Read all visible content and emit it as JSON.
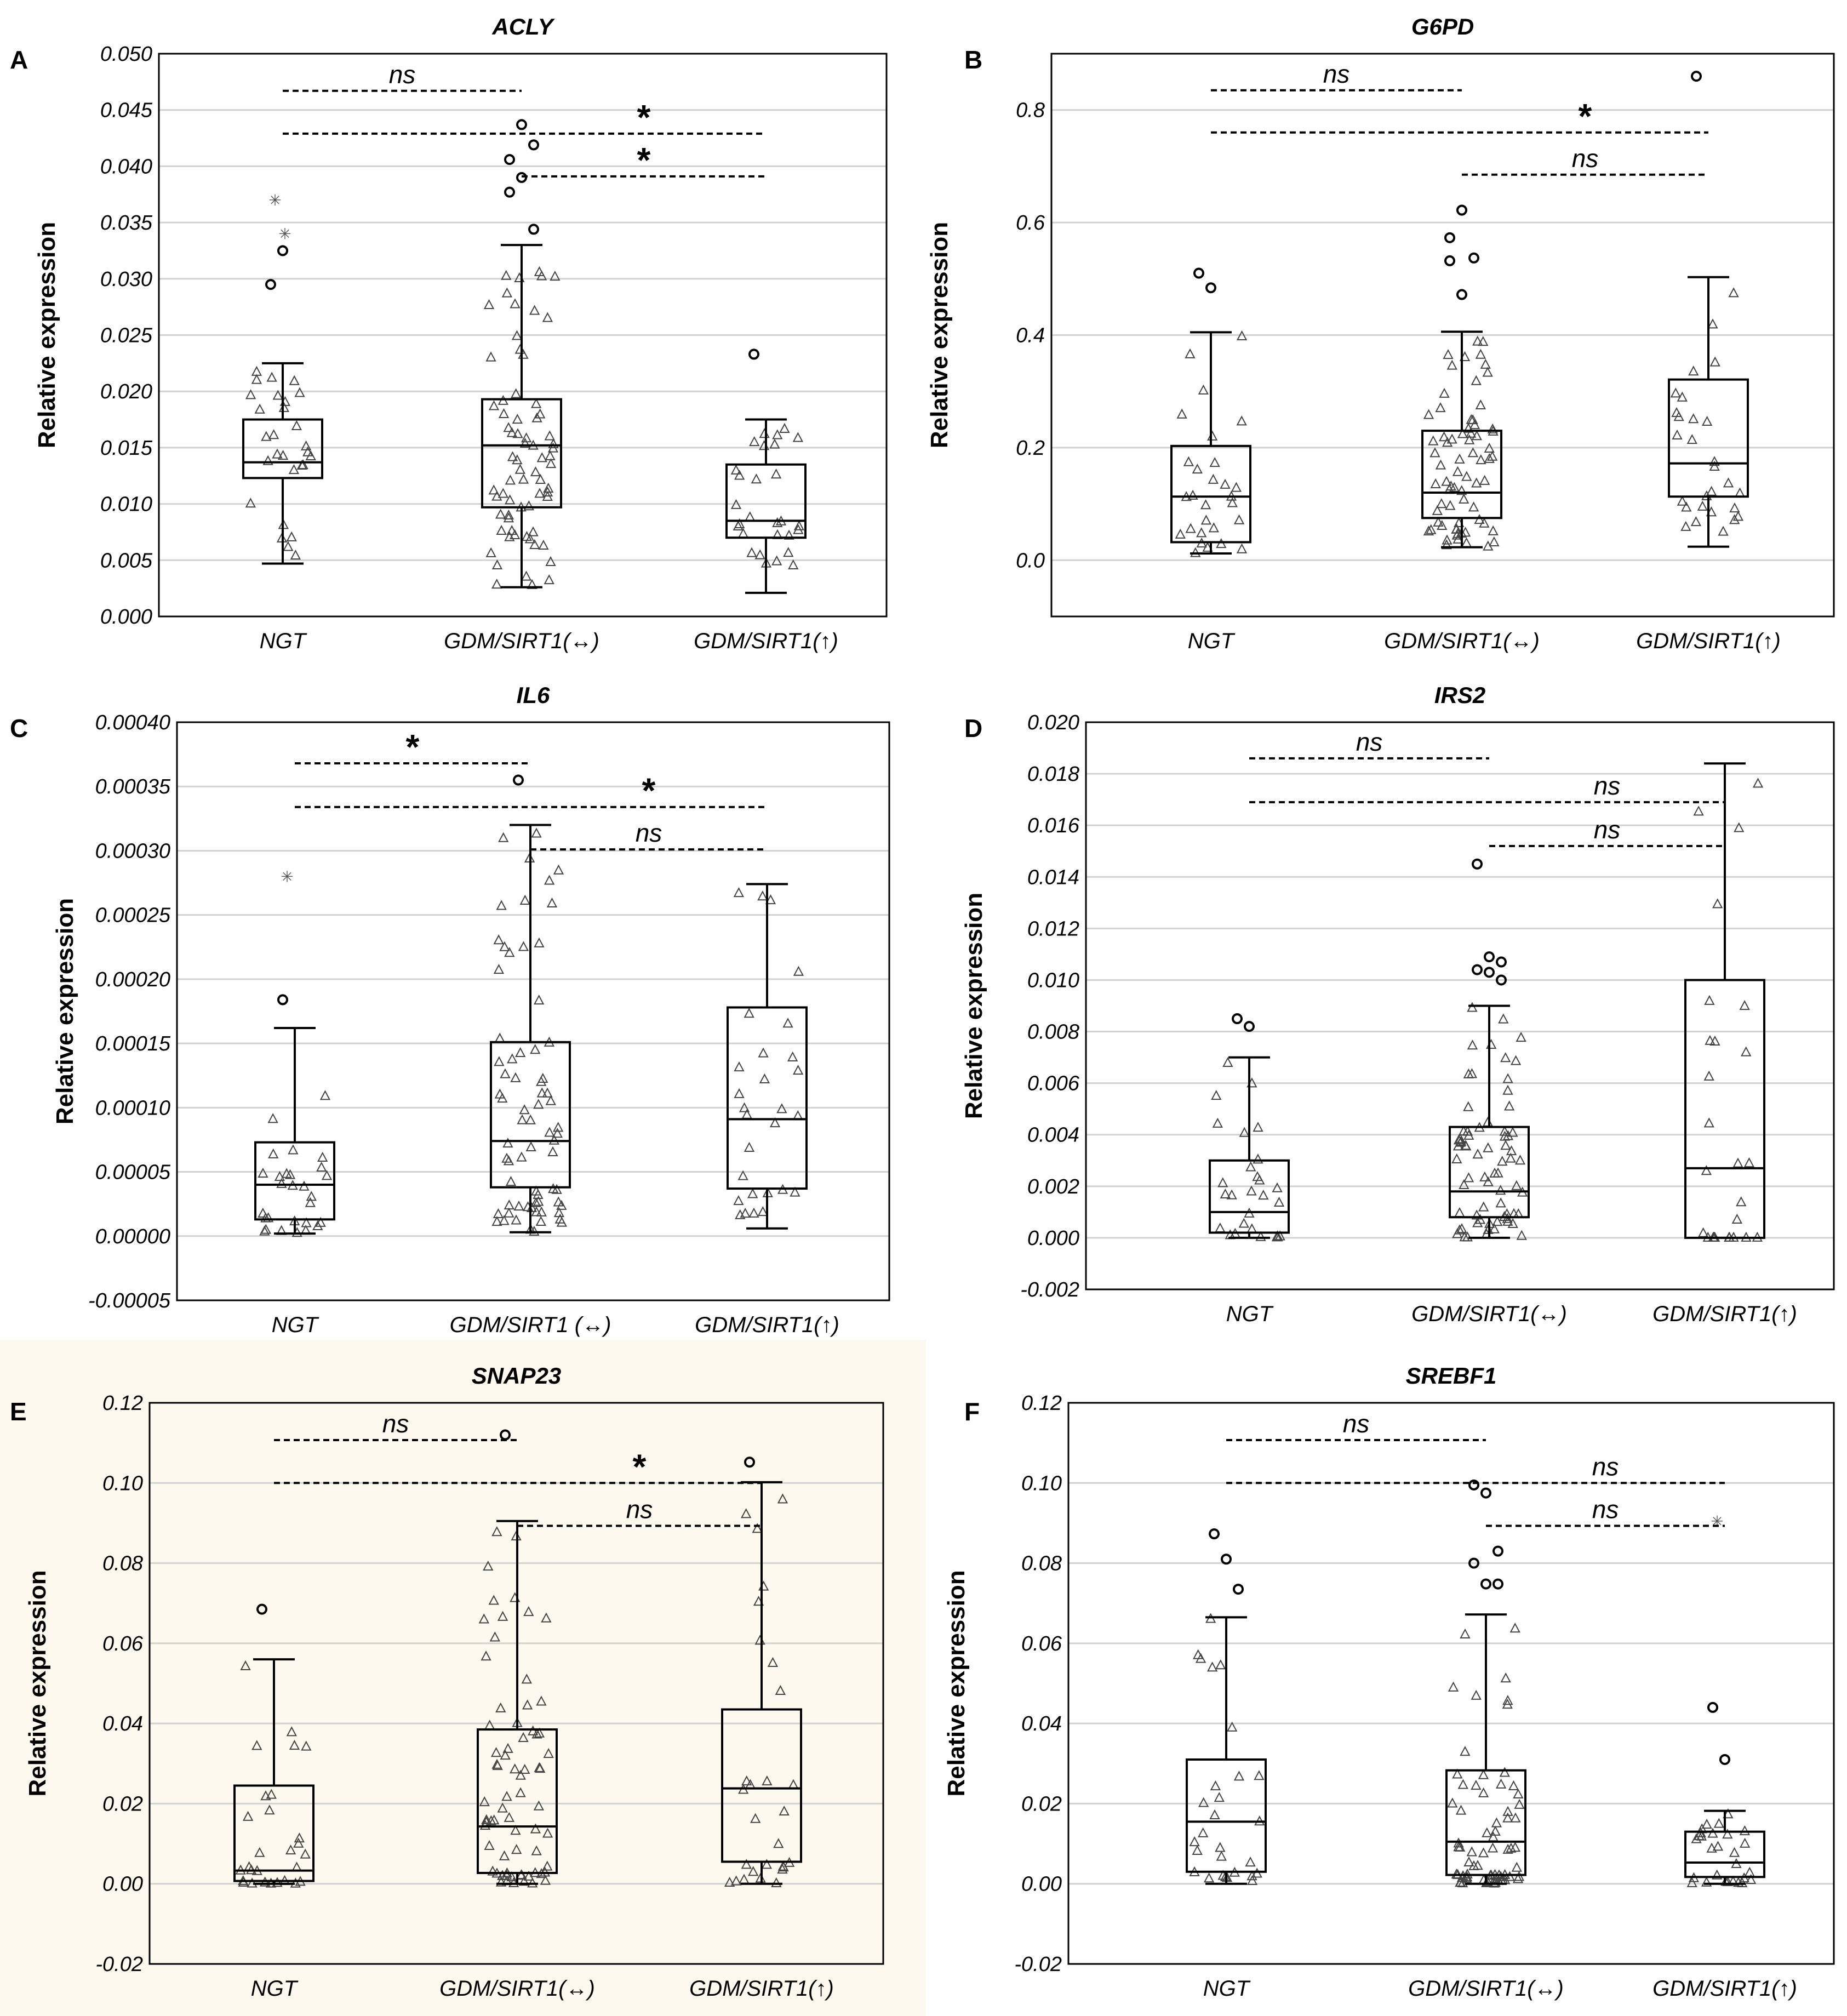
{
  "chart_data": [
    {
      "panel": "A",
      "title": "ACLY",
      "type": "box",
      "ylabel": "Relative expression",
      "ylim": [
        0,
        0.05
      ],
      "yticks": [
        "0.050",
        "0.045",
        "0.040",
        "0.035",
        "0.030",
        "0.025",
        "0.020",
        "0.015",
        "0.010",
        "0.005",
        "0.000"
      ],
      "categories": [
        "NGT",
        "GDM/SIRT1(↔)",
        "GDM/SIRT1(↑)"
      ],
      "boxes": [
        {
          "min": 0.0047,
          "q1": 0.0123,
          "median": 0.0137,
          "q3": 0.0175,
          "max": 0.0225,
          "outliers": [
            0.0295,
            0.0325
          ],
          "extremes": [
            0.037,
            0.034
          ]
        },
        {
          "min": 0.0026,
          "q1": 0.0097,
          "median": 0.0152,
          "q3": 0.0193,
          "max": 0.033,
          "outliers": [
            0.0377,
            0.0437,
            0.0419,
            0.0406,
            0.039,
            0.0344
          ],
          "extremes": []
        },
        {
          "min": 0.0021,
          "q1": 0.007,
          "median": 0.0085,
          "q3": 0.0135,
          "max": 0.0175,
          "outliers": [
            0.0233
          ],
          "extremes": []
        }
      ],
      "comparisons": [
        {
          "from": 0,
          "to": 1,
          "label": "ns",
          "y": 0.0467
        },
        {
          "from": 0,
          "to": 2,
          "label": "*",
          "y": 0.0429
        },
        {
          "from": 1,
          "to": 2,
          "label": "*",
          "y": 0.0391
        }
      ]
    },
    {
      "panel": "B",
      "title": "G6PD",
      "type": "box",
      "ylabel": "Relative expression",
      "ylim": [
        -0.1,
        0.9
      ],
      "yticks": [
        "0.8",
        "0.6",
        "0.4",
        "0.2",
        "0.0"
      ],
      "categories": [
        "NGT",
        "GDM/SIRT1(↔)",
        "GDM/SIRT1(↑)"
      ],
      "boxes": [
        {
          "min": 0.012,
          "q1": 0.032,
          "median": 0.113,
          "q3": 0.203,
          "max": 0.405,
          "outliers": [
            0.51,
            0.484
          ],
          "extremes": []
        },
        {
          "min": 0.023,
          "q1": 0.075,
          "median": 0.12,
          "q3": 0.23,
          "max": 0.406,
          "outliers": [
            0.573,
            0.622,
            0.537,
            0.532,
            0.472
          ],
          "extremes": []
        },
        {
          "min": 0.024,
          "q1": 0.113,
          "median": 0.172,
          "q3": 0.321,
          "max": 0.503,
          "outliers": [
            0.86
          ],
          "extremes": []
        }
      ],
      "comparisons": [
        {
          "from": 0,
          "to": 1,
          "label": "ns",
          "y": 0.835
        },
        {
          "from": 0,
          "to": 2,
          "label": "*",
          "y": 0.76
        },
        {
          "from": 1,
          "to": 2,
          "label": "ns",
          "y": 0.685
        }
      ]
    },
    {
      "panel": "C",
      "title": "IL6",
      "type": "box",
      "ylabel": "Relative expression",
      "ylim": [
        -5e-05,
        0.0004
      ],
      "yticks": [
        "0.00040",
        "0.00035",
        "0.00030",
        "0.00025",
        "0.00020",
        "0.00015",
        "0.00010",
        "0.00005",
        "0.00000",
        "-0.00005"
      ],
      "categories": [
        "NGT",
        "GDM/SIRT1 (↔)",
        "GDM/SIRT1(↑)"
      ],
      "boxes": [
        {
          "min": 2e-06,
          "q1": 1.3e-05,
          "median": 4e-05,
          "q3": 7.3e-05,
          "max": 0.000162,
          "outliers": [
            0.000184
          ],
          "extremes": [
            0.00028
          ]
        },
        {
          "min": 3e-06,
          "q1": 3.8e-05,
          "median": 7.4e-05,
          "q3": 0.000151,
          "max": 0.00032,
          "outliers": [
            0.000355
          ],
          "extremes": []
        },
        {
          "min": 6e-06,
          "q1": 3.7e-05,
          "median": 9.1e-05,
          "q3": 0.000178,
          "max": 0.000274,
          "outliers": [],
          "extremes": []
        }
      ],
      "comparisons": [
        {
          "from": 0,
          "to": 1,
          "label": "*",
          "y": 0.000368
        },
        {
          "from": 0,
          "to": 2,
          "label": "*",
          "y": 0.000334
        },
        {
          "from": 1,
          "to": 2,
          "label": "ns",
          "y": 0.000301
        }
      ]
    },
    {
      "panel": "D",
      "title": "IRS2",
      "type": "box",
      "ylabel": "Relative expression",
      "ylim": [
        -0.002,
        0.02
      ],
      "yticks": [
        "0.020",
        "0.018",
        "0.016",
        "0.014",
        "0.012",
        "0.010",
        "0.008",
        "0.006",
        "0.004",
        "0.002",
        "0.000",
        "-0.002"
      ],
      "categories": [
        "NGT",
        "GDM/SIRT1(↔)",
        "GDM/SIRT1(↑)"
      ],
      "boxes": [
        {
          "min": 0.0,
          "q1": 0.0002,
          "median": 0.001,
          "q3": 0.003,
          "max": 0.007,
          "outliers": [
            0.0085,
            0.0082
          ],
          "extremes": []
        },
        {
          "min": 0.0,
          "q1": 0.0008,
          "median": 0.0018,
          "q3": 0.0043,
          "max": 0.009,
          "outliers": [
            0.0145,
            0.0109,
            0.0107,
            0.0104,
            0.0103,
            0.01
          ],
          "extremes": []
        },
        {
          "min": 0.0,
          "q1": 0.0,
          "median": 0.0027,
          "q3": 0.01,
          "max": 0.0184,
          "outliers": [],
          "extremes": []
        }
      ],
      "comparisons": [
        {
          "from": 0,
          "to": 1,
          "label": "ns",
          "y": 0.0186
        },
        {
          "from": 0,
          "to": 2,
          "label": "ns",
          "y": 0.0169
        },
        {
          "from": 1,
          "to": 2,
          "label": "ns",
          "y": 0.0152
        }
      ]
    },
    {
      "panel": "E",
      "title": "SNAP23",
      "type": "box",
      "ylabel": "Relative expression",
      "ylim": [
        -0.02,
        0.12
      ],
      "yticks": [
        "0.12",
        "0.10",
        "0.08",
        "0.06",
        "0.04",
        "0.02",
        "0.00",
        "-0.02"
      ],
      "categories": [
        "NGT",
        "GDM/SIRT1(↔)",
        "GDM/SIRT1(↑)"
      ],
      "boxes": [
        {
          "min": 0.0,
          "q1": 0.0007,
          "median": 0.0033,
          "q3": 0.0245,
          "max": 0.056,
          "outliers": [
            0.0685
          ],
          "extremes": []
        },
        {
          "min": 0.0,
          "q1": 0.0027,
          "median": 0.0143,
          "q3": 0.0385,
          "max": 0.0905,
          "outliers": [
            0.112
          ],
          "extremes": []
        },
        {
          "min": 0.0,
          "q1": 0.0055,
          "median": 0.0238,
          "q3": 0.0435,
          "max": 0.1002,
          "outliers": [
            0.1052
          ],
          "extremes": []
        }
      ],
      "comparisons": [
        {
          "from": 0,
          "to": 1,
          "label": "ns",
          "y": 0.1107
        },
        {
          "from": 0,
          "to": 2,
          "label": "*",
          "y": 0.1
        },
        {
          "from": 1,
          "to": 2,
          "label": "ns",
          "y": 0.0893
        }
      ]
    },
    {
      "panel": "F",
      "title": "SREBF1",
      "type": "box",
      "ylabel": "Relative expression",
      "ylim": [
        -0.02,
        0.12
      ],
      "yticks": [
        "0.12",
        "0.10",
        "0.08",
        "0.06",
        "0.04",
        "0.02",
        "0.00",
        "-0.02"
      ],
      "categories": [
        "NGT",
        "GDM/SIRT1(↔)",
        "GDM/SIRT1(↑)"
      ],
      "boxes": [
        {
          "min": 0.0,
          "q1": 0.003,
          "median": 0.0155,
          "q3": 0.031,
          "max": 0.0665,
          "outliers": [
            0.0873,
            0.081,
            0.0735
          ],
          "extremes": []
        },
        {
          "min": 0.0,
          "q1": 0.0022,
          "median": 0.0105,
          "q3": 0.0283,
          "max": 0.0672,
          "outliers": [
            0.0995,
            0.0975,
            0.083,
            0.08,
            0.0748,
            0.0748
          ],
          "extremes": []
        },
        {
          "min": 0.0,
          "q1": 0.0017,
          "median": 0.0053,
          "q3": 0.013,
          "max": 0.0182,
          "outliers": [
            0.044,
            0.031
          ],
          "extremes": [
            0.0905
          ]
        }
      ],
      "comparisons": [
        {
          "from": 0,
          "to": 1,
          "label": "ns",
          "y": 0.1107
        },
        {
          "from": 0,
          "to": 2,
          "label": "ns",
          "y": 0.1
        },
        {
          "from": 1,
          "to": 2,
          "label": "ns",
          "y": 0.0893
        }
      ]
    }
  ]
}
